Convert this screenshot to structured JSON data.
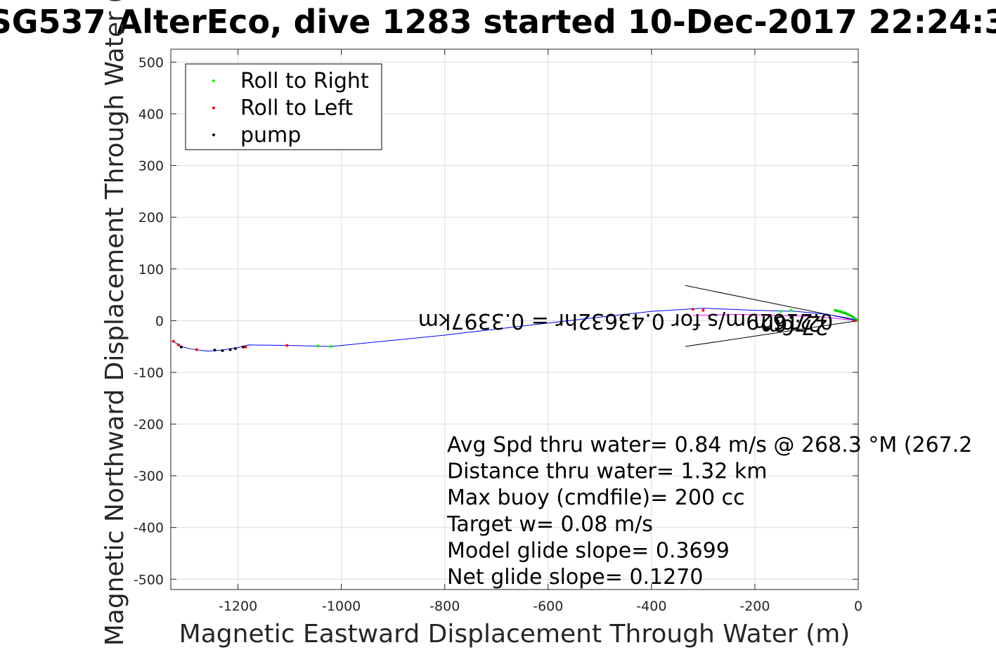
{
  "chart_data": {
    "type": "scatter",
    "title": "SG537 AlterEco, dive 1283 started 10-Dec-2017 22:24:3",
    "xlabel": "Magnetic Eastward Displacement Through Water (m)",
    "ylabel": "Magnetic Northward Displacement Through Water (",
    "xlim": [
      -1330,
      0
    ],
    "ylim": [
      -520,
      525
    ],
    "xticks": [
      -1200,
      -1000,
      -800,
      -600,
      -400,
      -200,
      0
    ],
    "yticks": [
      -500,
      -400,
      -300,
      -200,
      -100,
      0,
      100,
      200,
      300,
      400,
      500
    ],
    "grid": true,
    "legend_position": "top-left",
    "legend": [
      {
        "label": "Roll to Right",
        "color": "#00ff00"
      },
      {
        "label": "Roll to Left",
        "color": "#ff0000"
      },
      {
        "label": "pump",
        "color": "#000000"
      }
    ],
    "track": {
      "name": "track",
      "color": "#0000ff",
      "x": [
        0,
        -20,
        -60,
        -120,
        -200,
        -300,
        -400,
        -560,
        -800,
        -1020,
        -1060,
        -1100,
        -1180,
        -1200,
        -1230,
        -1260,
        -1290,
        -1310,
        -1325
      ],
      "y": [
        0,
        5,
        12,
        18,
        20,
        24,
        18,
        0,
        -28,
        -50,
        -49,
        -48,
        -47,
        -52,
        -57,
        -59,
        -55,
        -50,
        -40
      ]
    },
    "track2": {
      "color": "#ff00ff",
      "x": [
        0,
        -30,
        -80,
        -150,
        -230,
        -320
      ],
      "y": [
        0,
        3,
        8,
        10,
        12,
        10
      ]
    },
    "roll_right": {
      "x": [
        -5,
        -10,
        -15,
        -20,
        -25,
        -30,
        -35,
        -40,
        -45,
        -130,
        -150,
        -1020,
        -1045
      ],
      "y": [
        3,
        7,
        10,
        12,
        15,
        16,
        18,
        19,
        20,
        20,
        18,
        -50,
        -49
      ]
    },
    "roll_left": {
      "x": [
        -5,
        -320,
        -300,
        -1105,
        -1185,
        -1280,
        -1325,
        -1315
      ],
      "y": [
        0,
        22,
        20,
        -48,
        -51,
        -56,
        -40,
        -47
      ]
    },
    "pump": {
      "x": [
        -1245,
        -1230,
        -1215,
        -1205,
        -1310,
        -1190
      ],
      "y": [
        -57,
        -58,
        -56,
        -54,
        -51,
        -51
      ]
    },
    "arrow": {
      "tip": [
        0,
        0
      ],
      "upper": [
        -335,
        68
      ],
      "lower": [
        -335,
        -50
      ],
      "color": "#000000"
    },
    "flipped_labels": [
      "0.3397km",
      "0.21629m/s for 0.43632hr = 0.3397km",
      "27.6m",
      "27.6m"
    ],
    "annotations": [
      "Avg Spd thru water=  0.84 m/s @ 268.3 °M (267.2",
      "Distance thru water=  1.32 km",
      "Max buoy (cmdfile)= 200 cc",
      "Target w= 0.08 m/s",
      "Model glide slope= 0.3699",
      "Net glide slope= 0.1270"
    ]
  }
}
